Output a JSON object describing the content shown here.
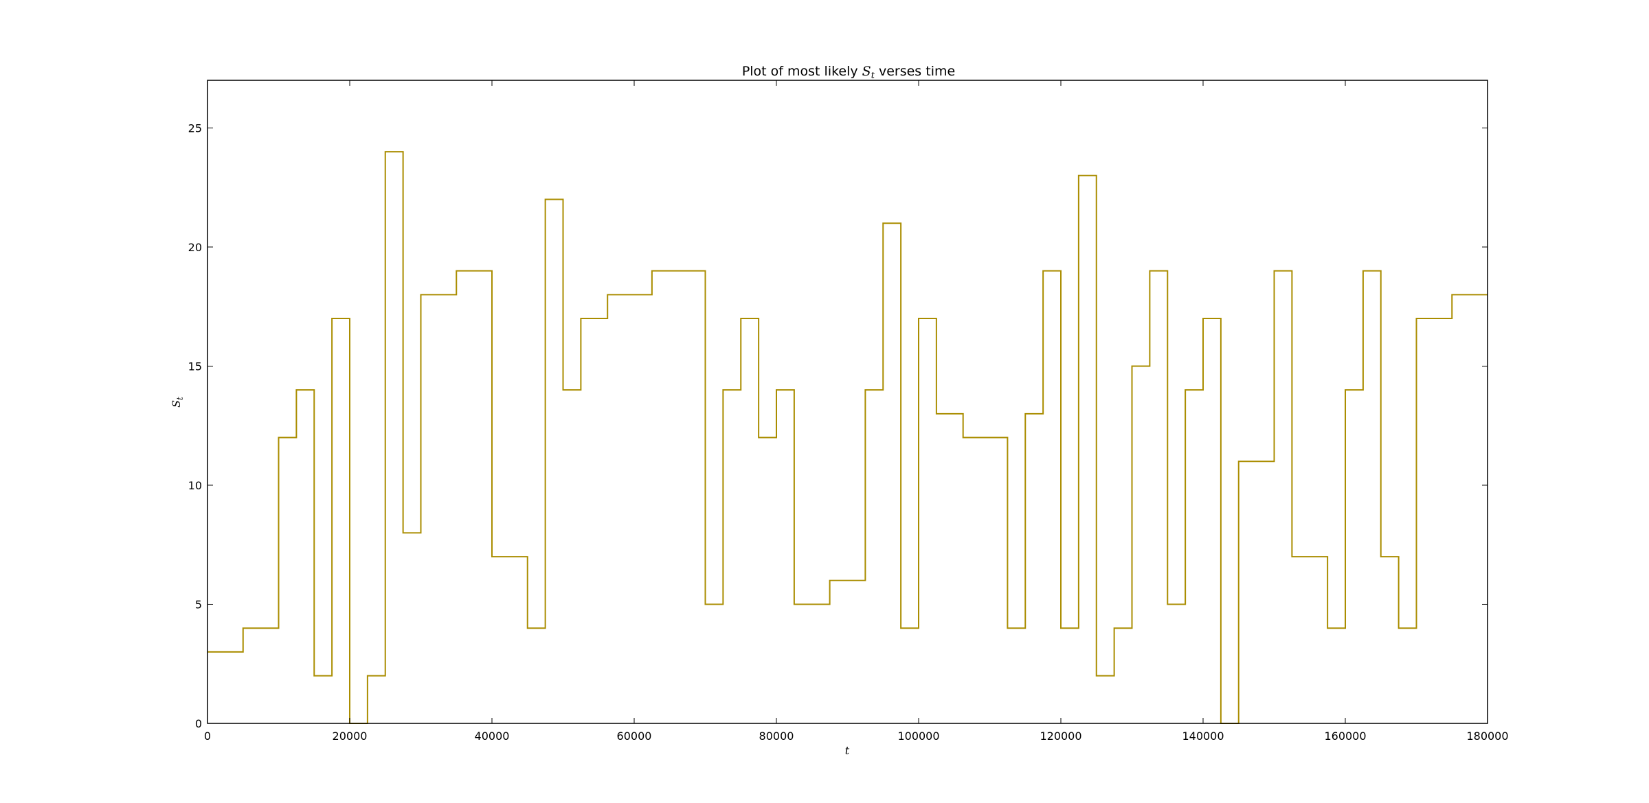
{
  "chart_data": {
    "type": "line",
    "step": "post",
    "title_prefix": "Plot of most likely ",
    "title_var": "S",
    "title_sub": "t",
    "title_suffix": " verses time",
    "xlabel": "t",
    "ylabel_var": "S",
    "ylabel_sub": "t",
    "xlim": [
      0,
      180000
    ],
    "ylim": [
      0,
      27
    ],
    "xticks": [
      0,
      20000,
      40000,
      60000,
      80000,
      100000,
      120000,
      140000,
      160000,
      180000
    ],
    "yticks": [
      0,
      5,
      10,
      15,
      20,
      25
    ],
    "grid": false,
    "line_color": "#aa8d00",
    "series": [
      {
        "x": [
          0,
          5000,
          10000,
          12500,
          15000,
          17500,
          20000,
          22500,
          25000,
          27500,
          30000,
          35000,
          40000,
          45000,
          47500,
          50000,
          52500,
          56250,
          62500,
          70000,
          72500,
          75000,
          77500,
          80000,
          82500,
          87500,
          92500,
          95000,
          97500,
          100000,
          102500,
          106250,
          112500,
          115000,
          117500,
          120000,
          122500,
          125000,
          127500,
          130000,
          132500,
          135000,
          137500,
          140000,
          142500,
          145000,
          150000,
          152500,
          157500,
          160000,
          162500,
          165000,
          167500,
          170000,
          175000,
          180000
        ],
        "y": [
          3,
          4,
          12,
          14,
          2,
          17,
          0,
          2,
          24,
          8,
          18,
          19,
          7,
          4,
          22,
          14,
          17,
          18,
          19,
          5,
          14,
          17,
          12,
          14,
          5,
          6,
          14,
          21,
          4,
          17,
          13,
          12,
          4,
          13,
          19,
          4,
          23,
          2,
          4,
          15,
          19,
          5,
          14,
          17,
          0,
          11,
          19,
          7,
          4,
          14,
          19,
          7,
          4,
          17,
          18,
          18
        ]
      }
    ]
  }
}
